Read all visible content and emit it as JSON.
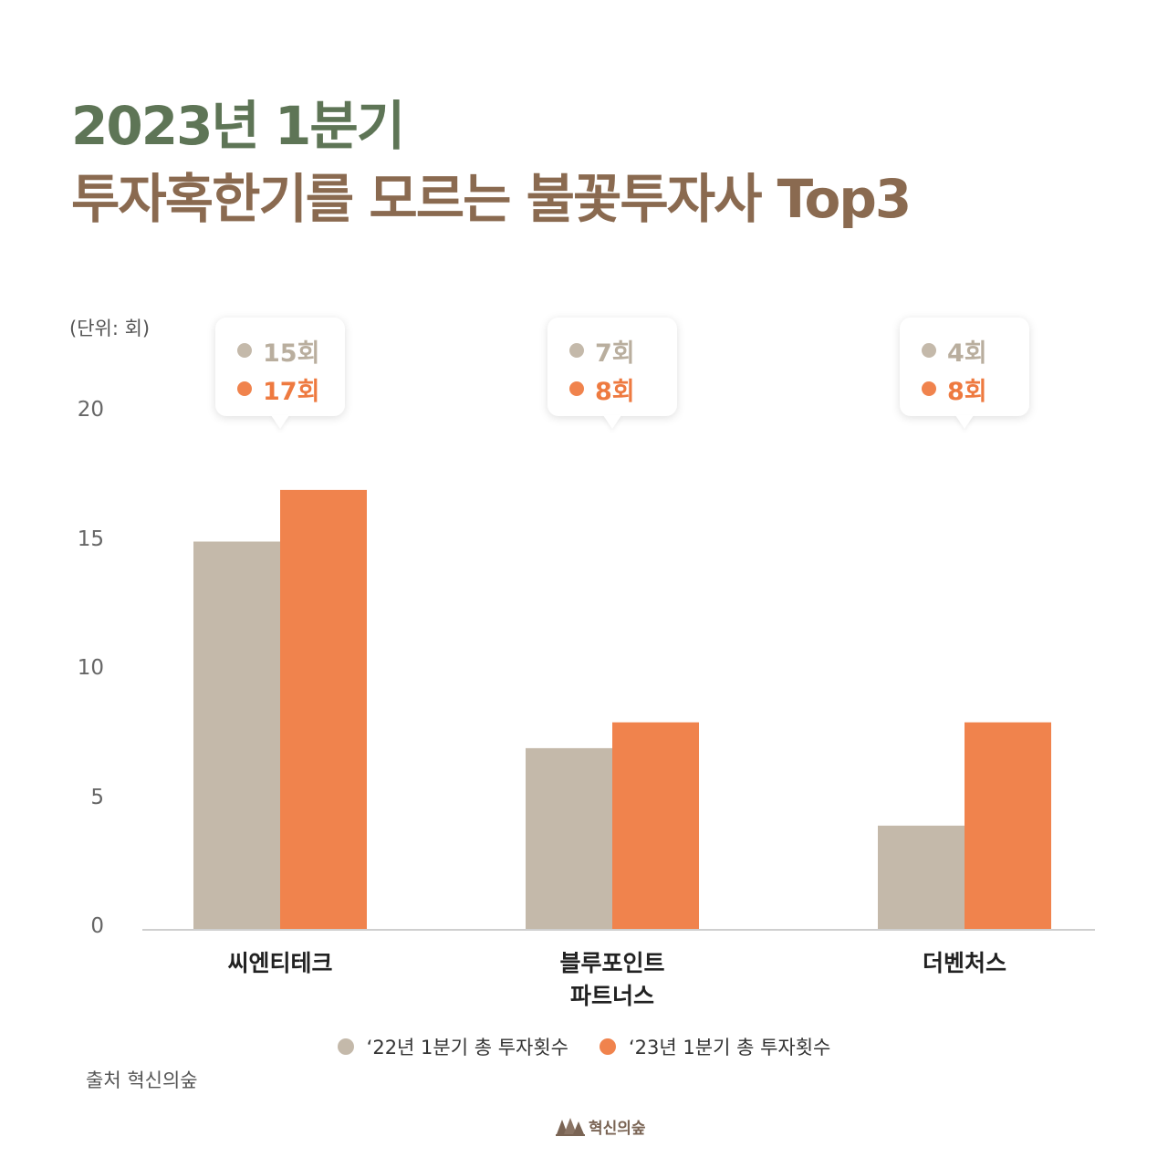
{
  "title": {
    "line1": "2023년 1분기",
    "line2": "투자혹한기를 모르는 불꽃투자사 Top3"
  },
  "colors": {
    "title_line1": "#5e7556",
    "title_line2": "#8a6a50",
    "series_2022": "#c4b9aa",
    "series_2023": "#f0834d"
  },
  "chart_data": {
    "type": "bar",
    "unit_label": "(단위: 회)",
    "categories": [
      "씨엔티테크",
      "블루포인트\n파트너스",
      "더벤처스"
    ],
    "series": [
      {
        "name": "‘22년 1분기 총 투자횟수",
        "values": [
          15,
          7,
          4
        ]
      },
      {
        "name": "‘23년 1분기 총 투자횟수",
        "values": [
          17,
          8,
          8
        ]
      }
    ],
    "ylim": [
      0,
      20
    ],
    "yticks": [
      0,
      5,
      10,
      15,
      20
    ],
    "annotations": [
      {
        "v1": "15회",
        "v2": "17회"
      },
      {
        "v1": "7회",
        "v2": "8회"
      },
      {
        "v1": "4회",
        "v2": "8회"
      }
    ],
    "grid": false,
    "legend": "bottom-center"
  },
  "source": "출처 혁신의숲",
  "logo": {
    "text": "혁신의숲"
  }
}
